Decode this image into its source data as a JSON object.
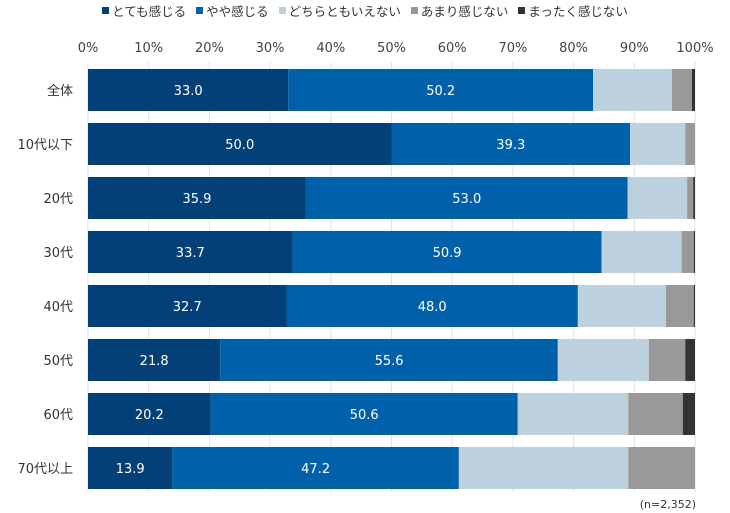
{
  "chart_data": {
    "type": "bar",
    "orientation": "horizontal-stacked-100",
    "categories": [
      "全体",
      "10代以下",
      "20代",
      "30代",
      "40代",
      "50代",
      "60代",
      "70代以上"
    ],
    "series": [
      {
        "name": "とても感じる",
        "color": "#034078",
        "values": [
          33.0,
          50.0,
          35.9,
          33.7,
          32.7,
          21.8,
          20.2,
          13.9
        ]
      },
      {
        "name": "やや感じる",
        "color": "#0060AA",
        "values": [
          50.2,
          39.3,
          53.0,
          50.9,
          48.0,
          55.6,
          50.6,
          47.2
        ]
      },
      {
        "name": "どちらともいえない",
        "color": "#BDD0DE",
        "values": [
          13.0,
          9.1,
          9.8,
          13.2,
          14.5,
          15.0,
          18.2,
          27.9
        ]
      },
      {
        "name": "あまり感じない",
        "color": "#999999",
        "values": [
          3.3,
          1.6,
          1.0,
          2.0,
          4.6,
          6.0,
          9.0,
          11.0
        ]
      },
      {
        "name": "まったく感じない",
        "color": "#333333",
        "values": [
          0.5,
          0.0,
          0.3,
          0.2,
          0.2,
          1.6,
          2.0,
          0.0
        ]
      }
    ],
    "labeled_series": [
      0,
      1
    ],
    "xticks": [
      "0%",
      "10%",
      "20%",
      "30%",
      "40%",
      "50%",
      "60%",
      "70%",
      "80%",
      "90%",
      "100%"
    ],
    "xlim": [
      0,
      100
    ],
    "grid": true,
    "legend": "top",
    "note": "(n=2,352)"
  }
}
